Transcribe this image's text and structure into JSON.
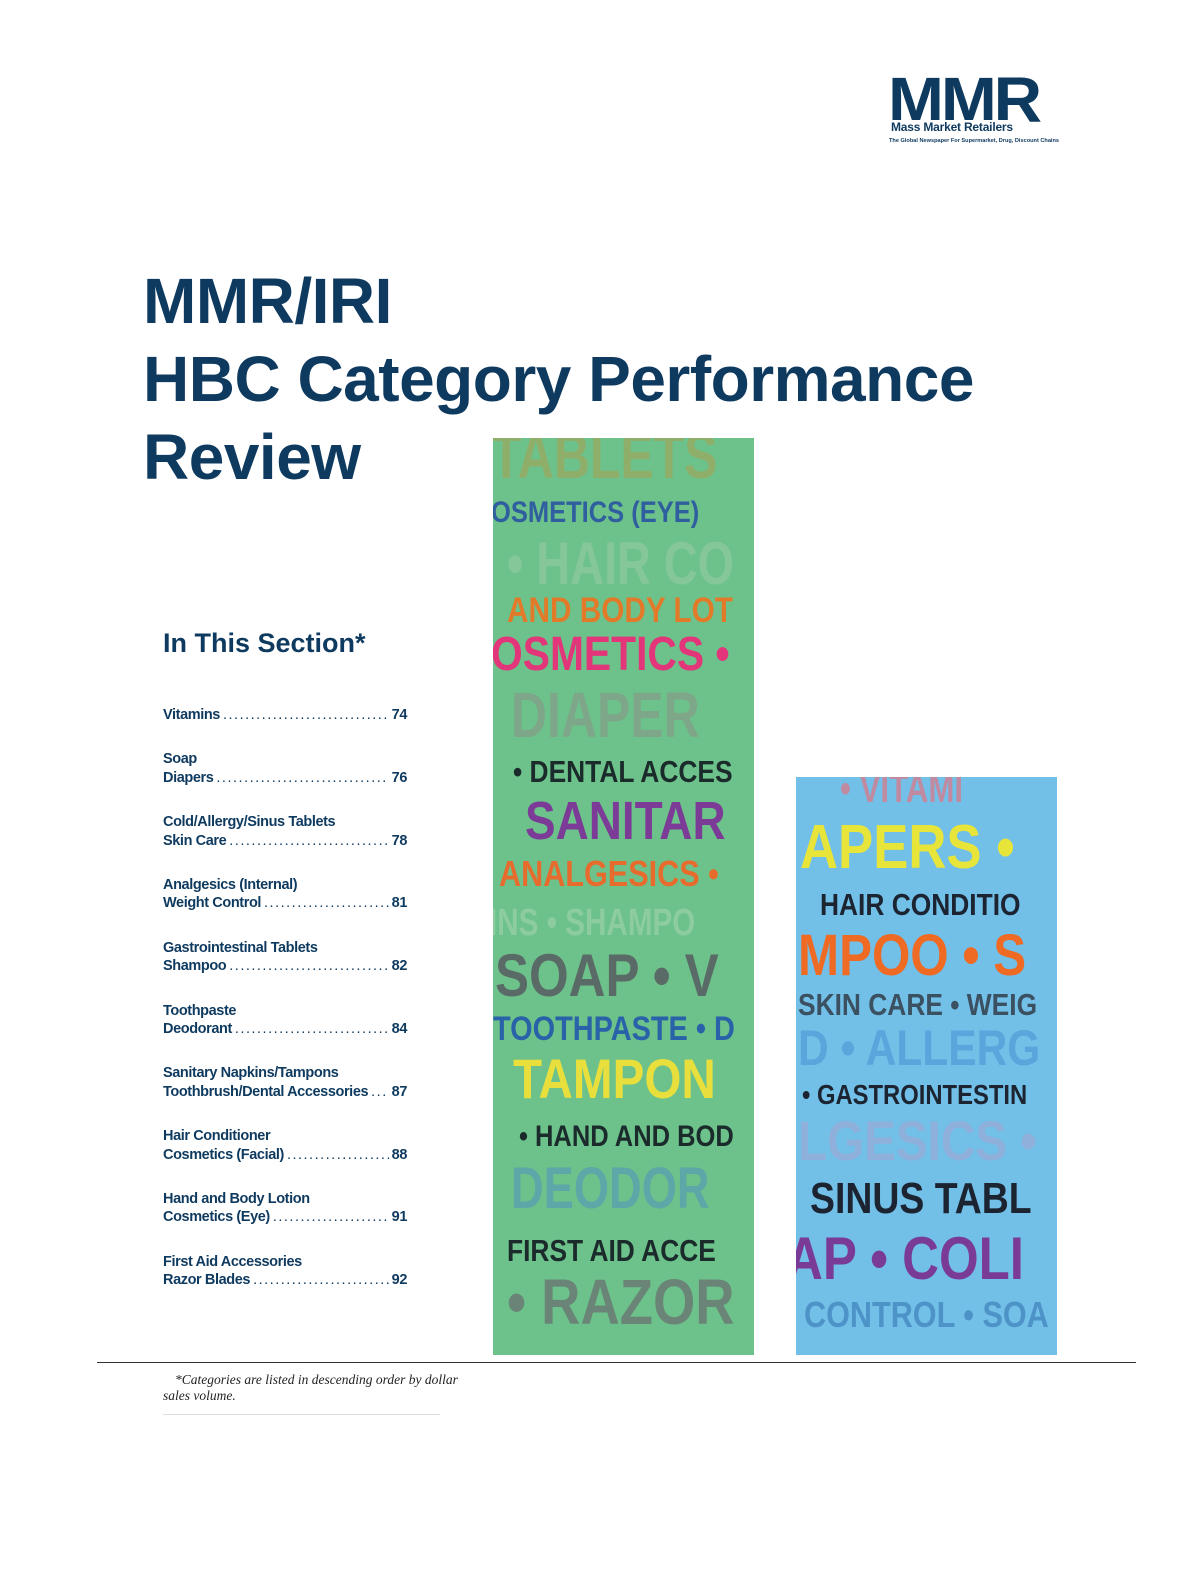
{
  "logo": {
    "letters": "MMR",
    "name": "Mass Market Retailers",
    "tagline": "The Global Newspaper For Supermarket, Drug, Discount Chains"
  },
  "title": {
    "line1": "MMR/IRI",
    "line2": "HBC Category Performance",
    "line3": "Review"
  },
  "section": {
    "heading": "In This Section*",
    "entries": [
      {
        "line1": "",
        "line2": "Vitamins",
        "page": "74"
      },
      {
        "line1": "Soap",
        "line2": "Diapers",
        "page": "76"
      },
      {
        "line1": "Cold/Allergy/Sinus Tablets",
        "line2": "Skin Care",
        "page": "78"
      },
      {
        "line1": "Analgesics (Internal)",
        "line2": "Weight Control",
        "page": "81"
      },
      {
        "line1": "Gastrointestinal Tablets",
        "line2": "Shampoo",
        "page": "82"
      },
      {
        "line1": "Toothpaste",
        "line2": "Deodorant",
        "page": "84"
      },
      {
        "line1": "Sanitary Napkins/Tampons",
        "line2": "Toothbrush/Dental Accessories",
        "page": "87"
      },
      {
        "line1": "Hair Conditioner",
        "line2": "Cosmetics (Facial)",
        "page": "88"
      },
      {
        "line1": "Hand and Body Lotion",
        "line2": "Cosmetics (Eye)",
        "page": "91"
      },
      {
        "line1": "First Aid Accessories",
        "line2": "Razor Blades",
        "page": "92"
      }
    ]
  },
  "panels": {
    "green": [
      {
        "text": "TABLETS",
        "color": "#8fae6a"
      },
      {
        "text": "OSMETICS (EYE)",
        "color": "#2f5f9e"
      },
      {
        "text": "• HAIR CO",
        "color": "#86c79a"
      },
      {
        "text": "AND BODY LOT",
        "color": "#e27a2a"
      },
      {
        "text": "OSMETICS •",
        "color": "#e3357a"
      },
      {
        "text": "DIAPER",
        "color": "#7ea78a"
      },
      {
        "text": "• DENTAL ACCES",
        "color": "#1b2a2a"
      },
      {
        "text": "SANITAR",
        "color": "#7b3b96"
      },
      {
        "text": "ANALGESICS •",
        "color": "#e86b2e"
      },
      {
        "text": "INS • SHAMPO",
        "color": "#8ccc9e"
      },
      {
        "text": "SOAP • V",
        "color": "#5a6a66"
      },
      {
        "text": "TOOTHPASTE • D",
        "color": "#2962a8"
      },
      {
        "text": "TAMPON",
        "color": "#e9df3c"
      },
      {
        "text": "• HAND AND BOD",
        "color": "#1b2a2a"
      },
      {
        "text": "DEODOR",
        "color": "#5da7a8"
      },
      {
        "text": "FIRST AID ACCE",
        "color": "#1b2a2a"
      },
      {
        "text": "• RAZOR",
        "color": "#6a8577"
      }
    ],
    "blue": [
      {
        "text": "• VITAMI",
        "color": "#c08aa0"
      },
      {
        "text": "APERS •",
        "color": "#e7e43a"
      },
      {
        "text": "HAIR CONDITIO",
        "color": "#1b2430"
      },
      {
        "text": "MPOO • S",
        "color": "#ef6a22"
      },
      {
        "text": "SKIN CARE • WEIG",
        "color": "#3b5060"
      },
      {
        "text": "D • ALLERG",
        "color": "#5aa5dc"
      },
      {
        "text": "• GASTROINTESTIN",
        "color": "#1b2430"
      },
      {
        "text": "LGESICS •",
        "color": "#8fb0da"
      },
      {
        "text": "SINUS TABL",
        "color": "#1b2430"
      },
      {
        "text": "AP • COLI",
        "color": "#7a3b96"
      },
      {
        "text": "CONTROL • SOA",
        "color": "#4e93c8"
      }
    ]
  },
  "footnote": "*Categories are listed in descending order by dollar sales volume."
}
